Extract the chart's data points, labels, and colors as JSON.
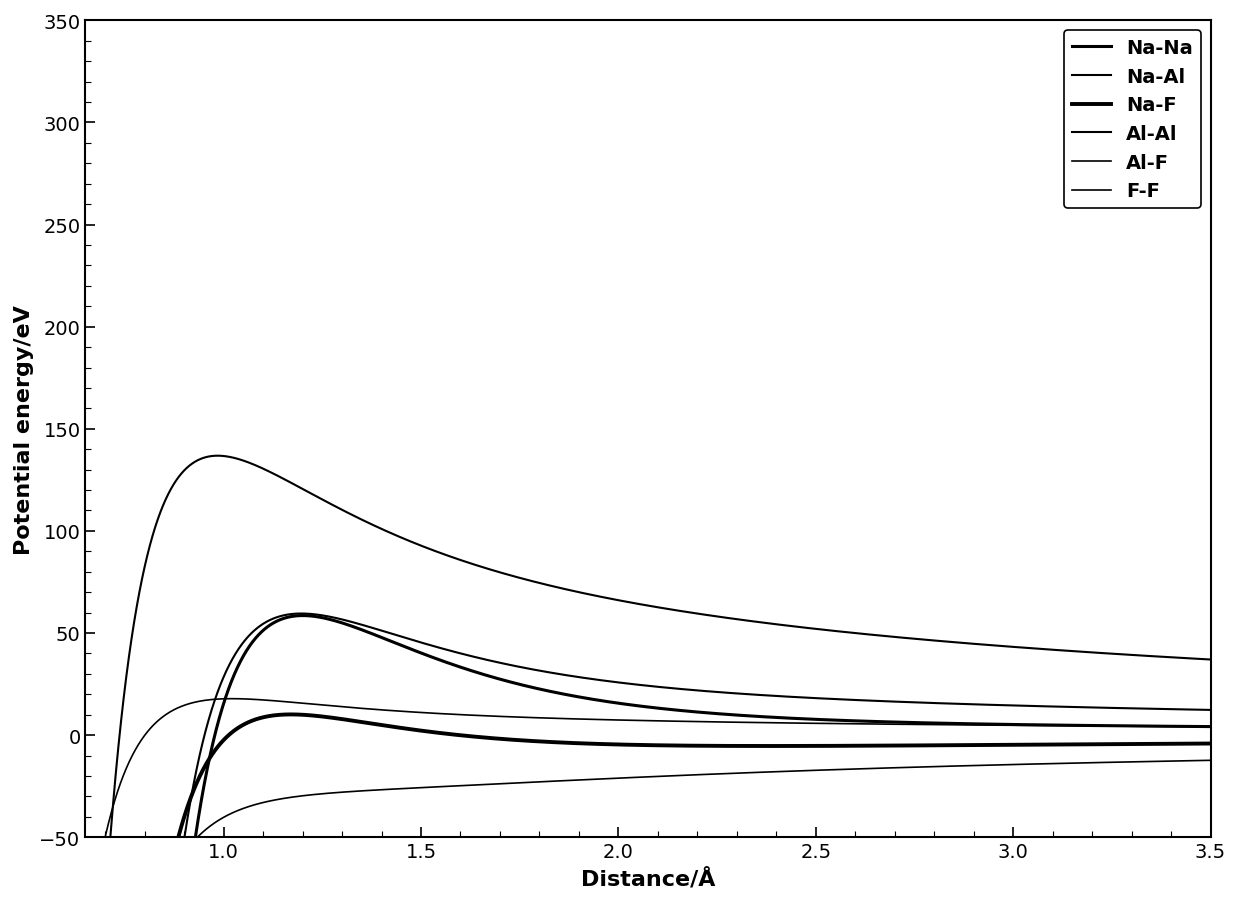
{
  "xlabel": "Distance/Å",
  "ylabel": "Potential energy/eV",
  "xlim": [
    0.65,
    3.5
  ],
  "ylim": [
    -50,
    350
  ],
  "xticks": [
    1.0,
    1.5,
    2.0,
    2.5,
    3.0,
    3.5
  ],
  "yticks": [
    -50,
    0,
    50,
    100,
    150,
    200,
    250,
    300,
    350
  ],
  "background_color": "#ffffff",
  "lines": [
    {
      "label": "Na-Na",
      "linewidth": 2.2
    },
    {
      "label": "Na-Al",
      "linewidth": 1.5
    },
    {
      "label": "Na-F",
      "linewidth": 2.8
    },
    {
      "label": "Al-Al",
      "linewidth": 1.5
    },
    {
      "label": "Al-F",
      "linewidth": 1.2
    },
    {
      "label": "F-F",
      "linewidth": 1.2
    }
  ],
  "line_params": [
    {
      "A": 3500,
      "rho": 0.35,
      "C6": 200.0,
      "q1q2": 1.0
    },
    {
      "A": 2800,
      "rho": 0.33,
      "C6": 150.0,
      "q1q2": 3.0
    },
    {
      "A": 2200,
      "rho": 0.315,
      "C6": 80.0,
      "q1q2": -1.0
    },
    {
      "A": 1600,
      "rho": 0.3,
      "C6": 50.0,
      "q1q2": 9.0
    },
    {
      "A": 1100,
      "rho": 0.285,
      "C6": 30.0,
      "q1q2": -3.0
    },
    {
      "A": 800,
      "rho": 0.265,
      "C6": 15.0,
      "q1q2": 1.0
    }
  ],
  "legend_fontsize": 14,
  "label_fontsize": 16,
  "tick_fontsize": 14
}
